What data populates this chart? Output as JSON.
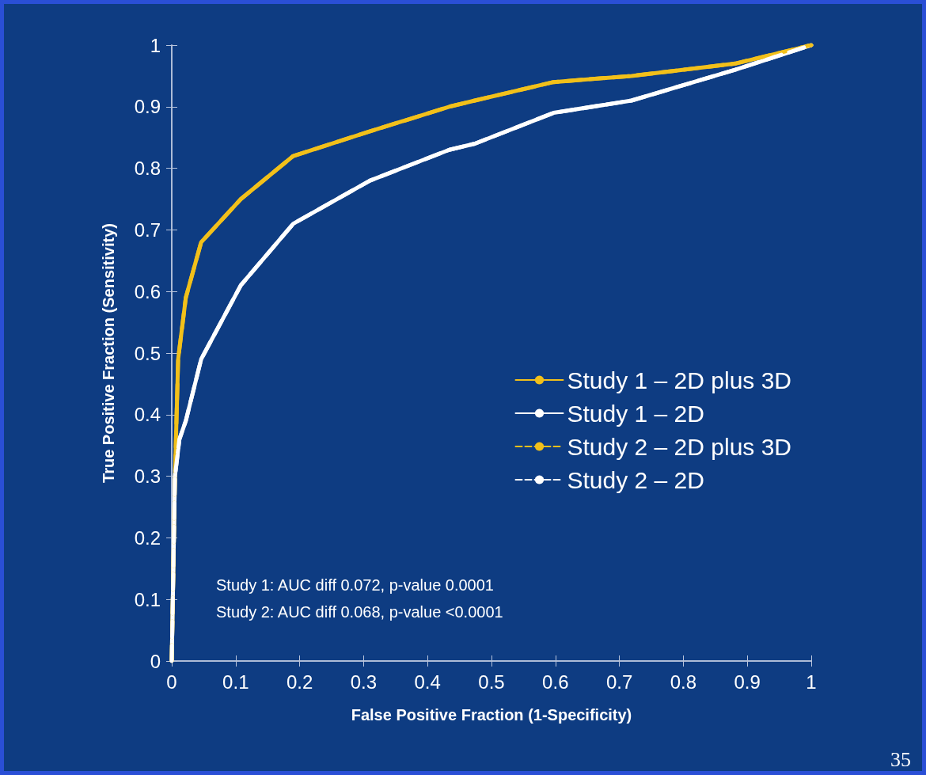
{
  "chart_data": {
    "type": "line",
    "xlabel": "False Positive Fraction (1-Specificity)",
    "ylabel": "True Positive Fraction (Sensitivity)",
    "xlim": [
      0,
      1
    ],
    "ylim": [
      0,
      1
    ],
    "xticks": [
      0,
      0.1,
      0.2,
      0.3,
      0.4,
      0.5,
      0.6,
      0.7,
      0.8,
      0.9,
      1
    ],
    "yticks": [
      0,
      0.1,
      0.2,
      0.3,
      0.4,
      0.5,
      0.6,
      0.7,
      0.8,
      0.9,
      1
    ],
    "grid": false,
    "legend": "right",
    "marker": "none",
    "series": [
      {
        "name": "Study 1 – 2D plus 3D",
        "color": "#f2c01a",
        "line_style": "solid",
        "x": [
          0,
          0.005,
          0.01,
          0.022,
          0.046,
          0.108,
          0.19,
          0.31,
          0.434,
          0.474,
          0.597,
          0.719,
          0.881,
          1
        ],
        "values": [
          0,
          0.3,
          0.49,
          0.59,
          0.68,
          0.75,
          0.82,
          0.86,
          0.9,
          0.91,
          0.94,
          0.95,
          0.97,
          1
        ]
      },
      {
        "name": "Study 1 – 2D",
        "color": "#ffffff",
        "line_style": "solid",
        "x": [
          0,
          0.005,
          0.012,
          0.022,
          0.046,
          0.108,
          0.19,
          0.31,
          0.434,
          0.474,
          0.597,
          0.719,
          0.881,
          1
        ],
        "values": [
          0,
          0.3,
          0.36,
          0.39,
          0.49,
          0.61,
          0.71,
          0.78,
          0.83,
          0.84,
          0.89,
          0.91,
          0.96,
          1
        ]
      },
      {
        "name": "Study 2 – 2D plus 3D",
        "color": "#f2c01a",
        "line_style": "dashed",
        "x": [
          0,
          0.005,
          0.01,
          0.022,
          0.046,
          0.108,
          0.19,
          0.31,
          0.434,
          0.474,
          0.597,
          0.719,
          0.881,
          1
        ],
        "values": [
          0,
          0.3,
          0.49,
          0.59,
          0.68,
          0.75,
          0.82,
          0.86,
          0.9,
          0.91,
          0.94,
          0.95,
          0.97,
          1
        ]
      },
      {
        "name": "Study 2 – 2D",
        "color": "#ffffff",
        "line_style": "dashed",
        "x": [
          0,
          0.005,
          0.012,
          0.022,
          0.046,
          0.108,
          0.19,
          0.31,
          0.434,
          0.474,
          0.597,
          0.719,
          0.881,
          1
        ],
        "values": [
          0,
          0.3,
          0.36,
          0.39,
          0.49,
          0.61,
          0.71,
          0.78,
          0.83,
          0.84,
          0.89,
          0.91,
          0.96,
          1
        ]
      }
    ],
    "annotations": [
      "Study 1: AUC diff 0.072, p-value 0.0001",
      "Study 2: AUC diff 0.068, p-value <0.0001",
      "35"
    ]
  }
}
